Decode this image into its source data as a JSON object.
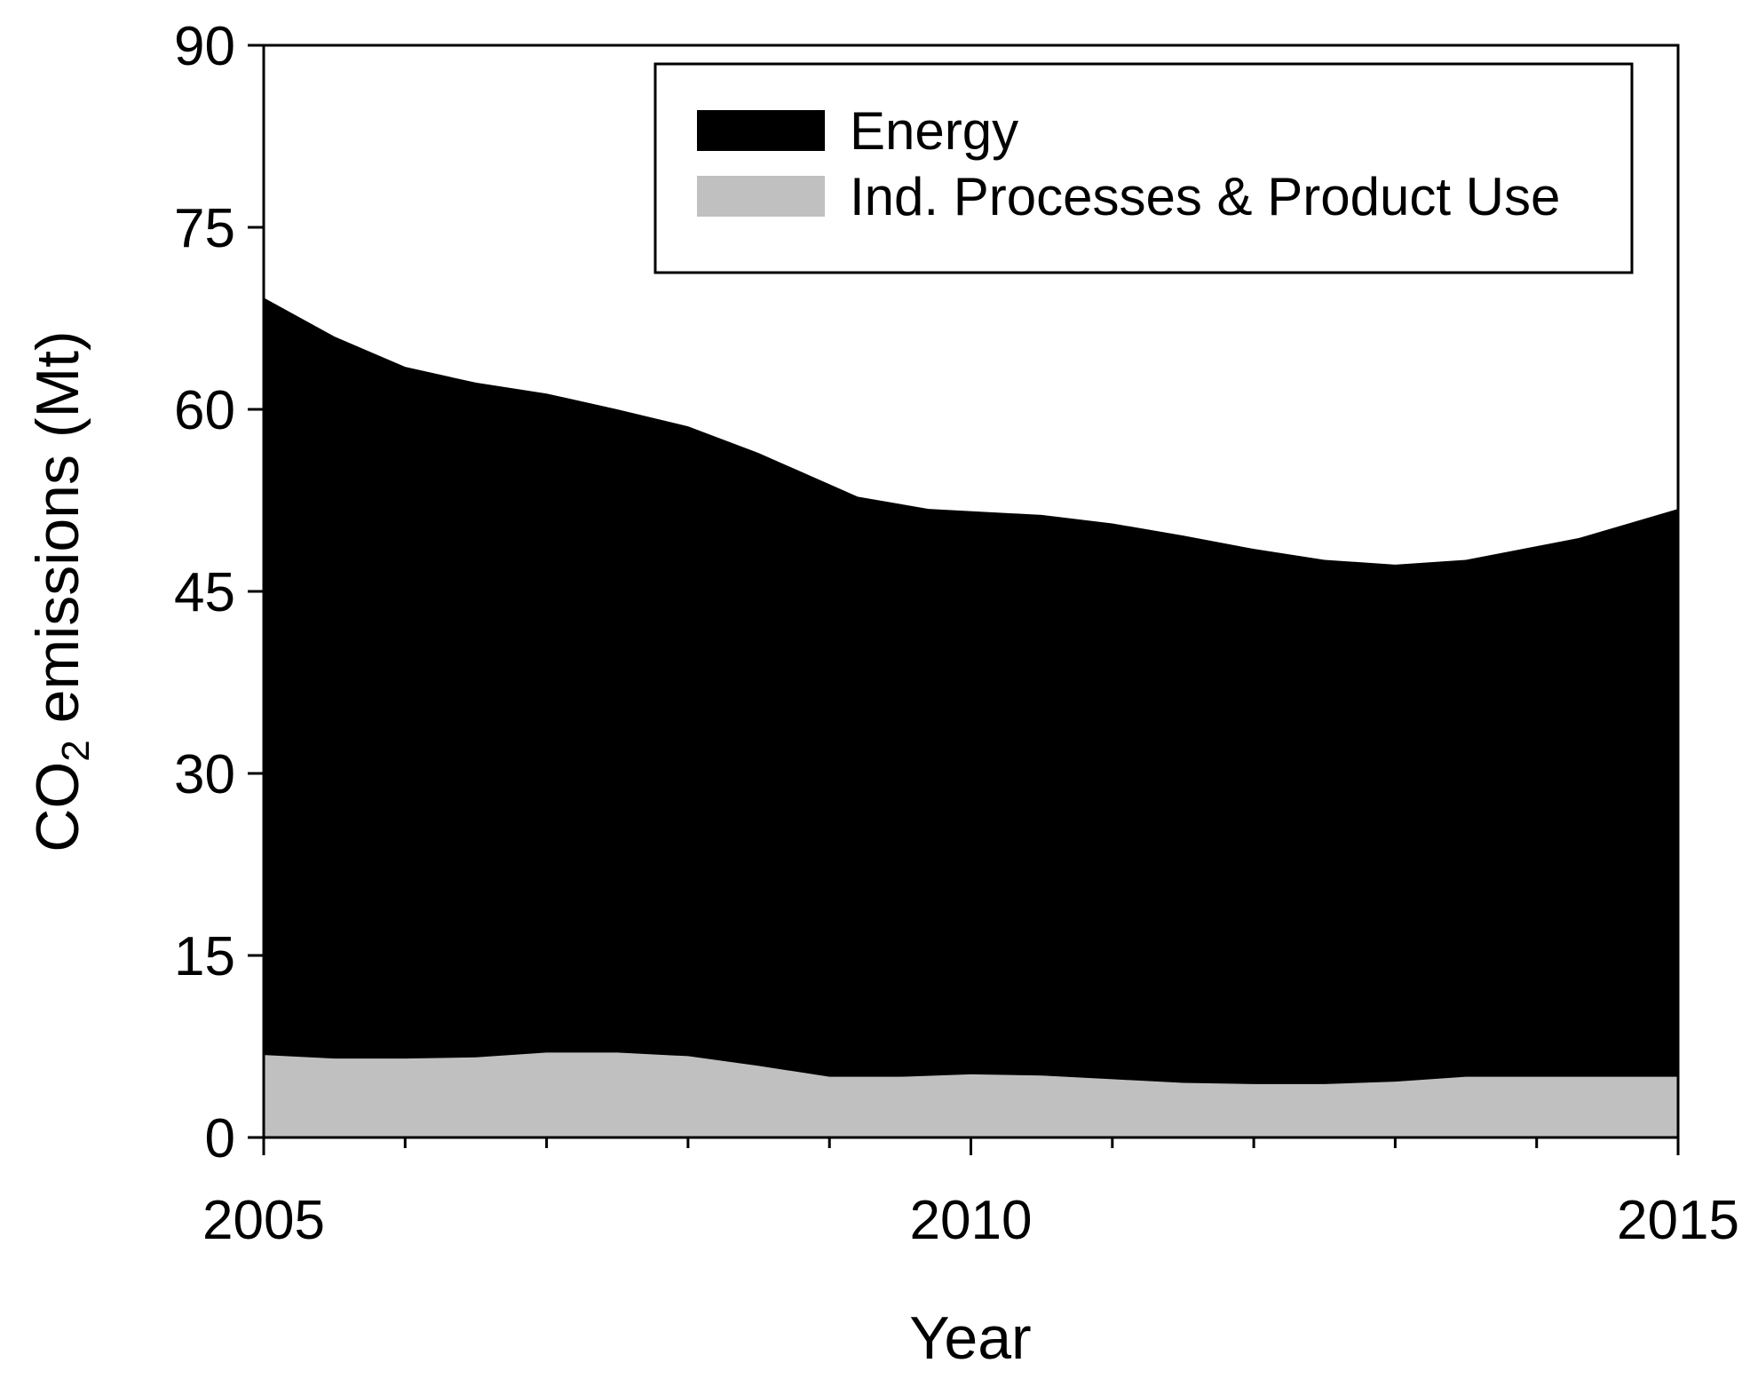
{
  "chart_data": {
    "type": "area",
    "stacked": true,
    "title": "",
    "xlabel": "Year",
    "ylabel_main": "CO",
    "ylabel_subscript": "2",
    "ylabel_rest": " emissions (Mt)",
    "xlim": [
      2005,
      2015
    ],
    "ylim": [
      0,
      90
    ],
    "xticks_major": [
      2005,
      2010,
      2015
    ],
    "xticks_minor": [
      2006,
      2007,
      2008,
      2009,
      2011,
      2012,
      2013,
      2014
    ],
    "yticks": [
      0,
      15,
      30,
      45,
      60,
      75,
      90
    ],
    "x": [
      2005,
      2005.5,
      2006,
      2006.5,
      2007,
      2007.5,
      2008,
      2008.5,
      2009,
      2009.5,
      2010,
      2010.5,
      2011,
      2011.5,
      2012,
      2012.5,
      2013,
      2013.5,
      2014,
      2014.5,
      2015
    ],
    "series": [
      {
        "name": "Ind. Processes & Product Use",
        "color": "#c0c0c0",
        "values": [
          6.8,
          6.5,
          6.5,
          6.6,
          7.0,
          7.0,
          6.7,
          5.9,
          5.0,
          5.0,
          5.2,
          5.1,
          4.8,
          4.5,
          4.4,
          4.4,
          4.6,
          5.0,
          5.0,
          5.0,
          5.0
        ]
      },
      {
        "name": "Energy",
        "color": "#000000",
        "total": [
          69.2,
          66.0,
          63.5,
          62.2,
          61.3,
          60.0,
          58.6,
          56.4,
          52.8,
          51.8,
          51.3,
          50.6,
          49.6,
          48.5,
          47.6,
          47.2,
          47.6,
          49.4,
          51.8
        ],
        "total_x": [
          2005,
          2005.5,
          2006,
          2006.5,
          2007,
          2007.5,
          2008,
          2008.5,
          2009.2,
          2009.7,
          2010.5,
          2011,
          2011.5,
          2012,
          2012.5,
          2013,
          2013.5,
          2014.3,
          2015
        ]
      }
    ],
    "legend": {
      "position": "top-right",
      "entries": [
        {
          "label": "Energy",
          "color": "#000000"
        },
        {
          "label": "Ind. Processes & Product Use",
          "color": "#c0c0c0"
        }
      ]
    },
    "grid": false
  }
}
